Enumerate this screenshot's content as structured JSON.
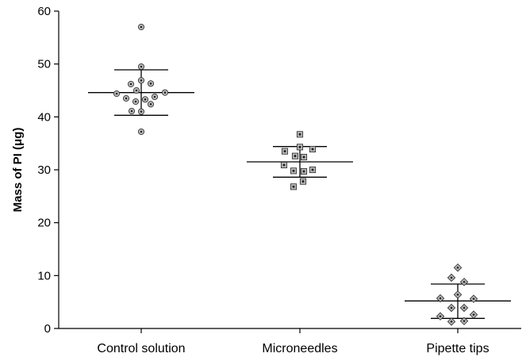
{
  "chart_data": {
    "type": "scatter",
    "title": "",
    "xlabel": "",
    "ylabel": "Mass of PI (μg)",
    "ylim": [
      0,
      60
    ],
    "y_ticks": [
      0,
      10,
      20,
      30,
      40,
      50,
      60
    ],
    "categories": [
      "Control solution",
      "Microneedles",
      "Pipette tips"
    ],
    "grid": false,
    "series": [
      {
        "category": "Control solution",
        "marker": "circle",
        "mean": 44.6,
        "sd_upper": 48.9,
        "sd_lower": 40.3,
        "points": [
          {
            "offset": 0.0,
            "y": 57.0
          },
          {
            "offset": 0.0,
            "y": 49.5
          },
          {
            "offset": -0.13,
            "y": 46.2
          },
          {
            "offset": 0.0,
            "y": 46.9
          },
          {
            "offset": 0.12,
            "y": 46.3
          },
          {
            "offset": -0.31,
            "y": 44.4
          },
          {
            "offset": -0.06,
            "y": 45.0
          },
          {
            "offset": 0.17,
            "y": 43.8
          },
          {
            "offset": 0.3,
            "y": 44.6
          },
          {
            "offset": -0.19,
            "y": 43.5
          },
          {
            "offset": -0.07,
            "y": 42.9
          },
          {
            "offset": 0.05,
            "y": 43.3
          },
          {
            "offset": 0.12,
            "y": 42.4
          },
          {
            "offset": -0.12,
            "y": 41.1
          },
          {
            "offset": 0.0,
            "y": 41.0
          },
          {
            "offset": 0.0,
            "y": 37.2
          }
        ]
      },
      {
        "category": "Microneedles",
        "marker": "square",
        "mean": 31.5,
        "sd_upper": 34.4,
        "sd_lower": 28.6,
        "points": [
          {
            "offset": 0.0,
            "y": 36.7
          },
          {
            "offset": 0.0,
            "y": 34.3
          },
          {
            "offset": 0.16,
            "y": 33.9
          },
          {
            "offset": -0.19,
            "y": 33.5
          },
          {
            "offset": -0.06,
            "y": 32.6
          },
          {
            "offset": 0.05,
            "y": 32.4
          },
          {
            "offset": -0.2,
            "y": 30.9
          },
          {
            "offset": -0.08,
            "y": 29.8
          },
          {
            "offset": 0.05,
            "y": 29.7
          },
          {
            "offset": 0.16,
            "y": 30.0
          },
          {
            "offset": 0.04,
            "y": 27.8
          },
          {
            "offset": -0.08,
            "y": 26.8
          }
        ]
      },
      {
        "category": "Pipette tips",
        "marker": "diamond",
        "mean": 5.2,
        "sd_upper": 8.4,
        "sd_lower": 1.9,
        "points": [
          {
            "offset": 0.0,
            "y": 11.5
          },
          {
            "offset": -0.08,
            "y": 9.6
          },
          {
            "offset": 0.08,
            "y": 8.8
          },
          {
            "offset": 0.0,
            "y": 6.4
          },
          {
            "offset": -0.22,
            "y": 5.7
          },
          {
            "offset": 0.2,
            "y": 5.6
          },
          {
            "offset": -0.08,
            "y": 3.9
          },
          {
            "offset": 0.08,
            "y": 3.9
          },
          {
            "offset": -0.22,
            "y": 2.3
          },
          {
            "offset": 0.2,
            "y": 2.6
          },
          {
            "offset": -0.08,
            "y": 1.3
          },
          {
            "offset": 0.08,
            "y": 1.4
          }
        ]
      }
    ]
  }
}
